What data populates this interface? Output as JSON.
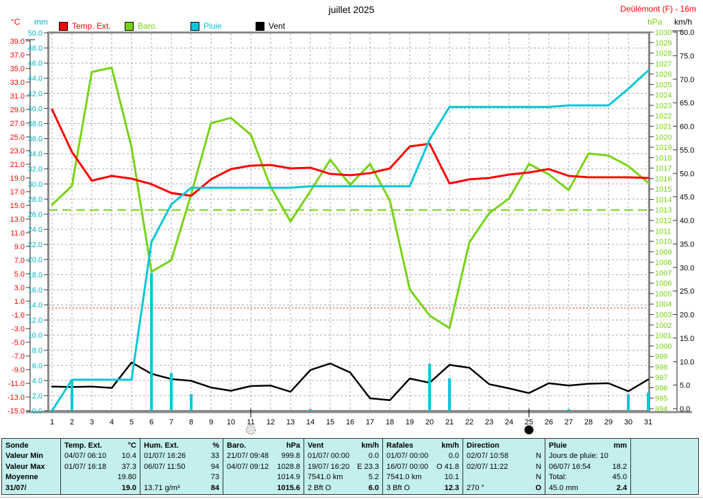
{
  "header": {
    "title": "juillet 2025",
    "station": "Deûlémont (F) - 16m"
  },
  "axis_units": {
    "temp": "°C",
    "rain": "mm",
    "baro": "hPa",
    "wind": "km/h"
  },
  "legend": [
    {
      "label": "Temp. Ext.",
      "color": "#ff0000"
    },
    {
      "label": "Baro.",
      "color": "#76d314"
    },
    {
      "label": "Pluie",
      "color": "#00c8d8"
    },
    {
      "label": "Vent",
      "color": "#000000"
    }
  ],
  "chart_data": {
    "type": "line",
    "title": "juillet 2025",
    "x_days": [
      1,
      2,
      3,
      4,
      5,
      6,
      7,
      8,
      9,
      10,
      11,
      12,
      13,
      14,
      15,
      16,
      17,
      18,
      19,
      20,
      21,
      22,
      23,
      24,
      25,
      26,
      27,
      28,
      29,
      30,
      31
    ],
    "axes": {
      "temp": {
        "label": "°C",
        "min": -15,
        "max": 39,
        "step": 2,
        "color": "#ff0000"
      },
      "rain": {
        "label": "mm",
        "min": 0,
        "max": 50,
        "step": 2,
        "color": "#00b4c8"
      },
      "baro": {
        "label": "hPa",
        "min": 994,
        "max": 1030,
        "step": 1,
        "color": "#76d314"
      },
      "wind": {
        "label": "km/h",
        "min": 0,
        "max": 80,
        "step": 5,
        "color": "#000000"
      }
    },
    "series": [
      {
        "name": "Temp. Ext.",
        "axis": "temp",
        "unit": "°C",
        "color": "#ff0000",
        "values": [
          29.0,
          22.8,
          18.6,
          19.3,
          18.9,
          18.1,
          16.8,
          16.4,
          18.8,
          20.3,
          20.8,
          20.9,
          20.4,
          20.5,
          19.6,
          19.4,
          19.7,
          20.4,
          23.6,
          24.0,
          18.2,
          18.8,
          19.0,
          19.5,
          19.8,
          20.3,
          19.3,
          19.1,
          19.1,
          19.1,
          19.0
        ]
      },
      {
        "name": "Baro.",
        "axis": "baro",
        "unit": "hPa",
        "color": "#76d314",
        "values": [
          1013.5,
          1015.3,
          1026.2,
          1026.6,
          1019.0,
          1007.1,
          1008.2,
          1014.5,
          1021.3,
          1021.8,
          1020.2,
          1015.2,
          1011.9,
          1014.8,
          1017.8,
          1015.4,
          1017.4,
          1013.9,
          1005.4,
          1002.9,
          1001.7,
          1009.9,
          1012.7,
          1014.1,
          1017.4,
          1016.4,
          1014.9,
          1018.4,
          1018.2,
          1017.2,
          1015.6
        ]
      },
      {
        "name": "Pluie (cumul)",
        "axis": "rain",
        "unit": "mm",
        "color": "#00c8d8",
        "values": [
          0.0,
          4.1,
          4.1,
          4.1,
          4.1,
          22.3,
          27.3,
          29.5,
          29.5,
          29.5,
          29.5,
          29.5,
          29.5,
          29.7,
          29.7,
          29.7,
          29.7,
          29.7,
          29.7,
          35.9,
          40.2,
          40.2,
          40.2,
          40.2,
          40.2,
          40.2,
          40.4,
          40.4,
          40.4,
          42.6,
          45.0
        ]
      },
      {
        "name": "Vent",
        "axis": "wind",
        "unit": "km/h",
        "color": "#000000",
        "values": [
          4.7,
          4.6,
          4.7,
          4.4,
          9.8,
          7.4,
          6.3,
          5.9,
          4.5,
          3.8,
          4.8,
          4.9,
          3.6,
          8.2,
          9.6,
          7.7,
          2.2,
          1.8,
          6.4,
          5.5,
          9.3,
          8.7,
          5.2,
          4.3,
          3.3,
          5.4,
          4.9,
          5.3,
          5.4,
          3.7,
          6.2
        ]
      }
    ],
    "rain_bars": {
      "days": [
        2,
        6,
        7,
        8,
        14,
        20,
        21,
        27,
        30,
        31
      ],
      "values": [
        4.1,
        18.2,
        5.0,
        2.2,
        0.2,
        6.2,
        4.3,
        0.2,
        2.2,
        2.4
      ]
    },
    "reference_lines": [
      {
        "axis": "temp",
        "value": 0.0,
        "color": "#ff0000",
        "style": "dotted"
      },
      {
        "axis": "baro",
        "value": 1013.0,
        "color": "#76d314",
        "style": "dashed"
      }
    ],
    "moon_markers": [
      {
        "day": 11,
        "phase": "full-moon"
      },
      {
        "day": 25,
        "phase": "new-moon"
      }
    ]
  },
  "table": {
    "row_labels": [
      "Sonde",
      "Valeur Min",
      "Valeur Max",
      "Moyenne",
      "31/07/"
    ],
    "columns": [
      {
        "name": "Temp. Ext.",
        "unit": "°C",
        "rows": [
          [
            "04/07/ 06:10",
            "10.4"
          ],
          [
            "01/07/ 16:18",
            "37.3"
          ],
          [
            "",
            "19.80"
          ],
          [
            "",
            "19.0"
          ]
        ]
      },
      {
        "name": "Hum. Ext.",
        "unit": "%",
        "rows": [
          [
            "01/07/ 16:26",
            "33"
          ],
          [
            "06/07/ 11:50",
            "94"
          ],
          [
            "",
            "73"
          ],
          [
            "13.71 g/m³",
            "84"
          ]
        ]
      },
      {
        "name": "Baro.",
        "unit": "hPa",
        "rows": [
          [
            "21/07/ 09:48",
            "999.8"
          ],
          [
            "04/07/ 09:12",
            "1028.8"
          ],
          [
            "",
            "1014.9"
          ],
          [
            "",
            "1015.6"
          ]
        ]
      },
      {
        "name": "Vent",
        "unit": "km/h",
        "rows": [
          [
            "01/07/ 00:00",
            "0.0"
          ],
          [
            "19/07/ 16:20",
            "E 23.3"
          ],
          [
            "7541.0 km",
            "5.2"
          ],
          [
            "2 Bft O",
            "6.0"
          ]
        ]
      },
      {
        "name": "Rafales",
        "unit": "km/h",
        "rows": [
          [
            "01/07/ 00:00",
            "0.0"
          ],
          [
            "16/07/ 00:00",
            "O 41.8"
          ],
          [
            "7541.0 km",
            "10.1"
          ],
          [
            "3 Bft O",
            "12.3"
          ]
        ]
      },
      {
        "name": "Direction",
        "unit": "",
        "rows": [
          [
            "02/07/ 10:58",
            "N"
          ],
          [
            "02/07/ 11:22",
            "N"
          ],
          [
            "",
            "N"
          ],
          [
            "270 °",
            "O"
          ]
        ]
      },
      {
        "name": "Pluie",
        "unit": "mm",
        "rows": [
          [
            "Jours de pluie: 10",
            ""
          ],
          [
            "06/07/ 16:54",
            "18.2"
          ],
          [
            "Total:",
            "45.0"
          ],
          [
            "45.0 mm",
            "2.4"
          ]
        ]
      }
    ]
  }
}
